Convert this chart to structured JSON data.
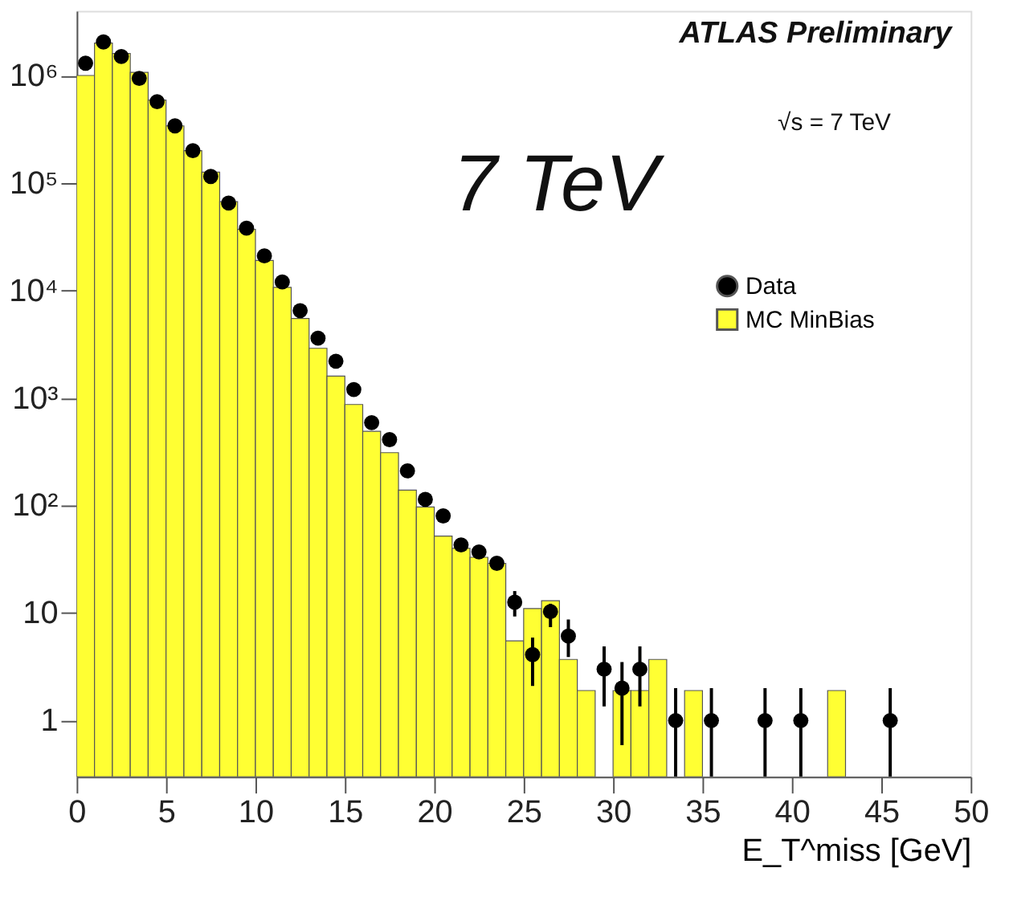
{
  "chart_data": {
    "type": "histogram",
    "xlabel": "E_T^miss [GeV]",
    "annotations": [
      "ATLAS Preliminary",
      "√s = 7 TeV",
      "7 TeV"
    ],
    "bins": [
      0,
      1,
      2,
      3,
      4,
      5,
      6,
      7,
      8,
      9,
      10,
      11,
      12,
      13,
      14,
      15,
      16,
      17,
      18,
      19,
      20,
      21,
      22,
      23,
      24,
      25,
      26,
      27,
      28,
      29,
      30,
      31,
      32,
      33,
      34,
      35,
      36,
      37,
      38,
      39,
      40,
      41,
      42,
      43,
      44,
      45,
      46,
      47,
      48,
      49,
      50
    ],
    "series": [
      {
        "name": "Data",
        "type": "scatter",
        "color": "#000000",
        "marker": "circle",
        "x": [
          0.5,
          1.5,
          2.5,
          3.5,
          4.5,
          5.5,
          6.5,
          7.5,
          8.5,
          9.5,
          10.5,
          11.5,
          12.5,
          13.5,
          14.5,
          15.5,
          16.5,
          17.5,
          18.5,
          19.5,
          20.5,
          21.5,
          22.5,
          23.5,
          24.5,
          25.5,
          26.5,
          27.5,
          29.5,
          30.5,
          31.5,
          33.5,
          35.5,
          38.5,
          40.5,
          45.5
        ],
        "values": [
          1300000,
          2050000,
          1500000,
          940000,
          570000,
          340000,
          200000,
          115000,
          65000,
          38000,
          21000,
          12000,
          6500,
          3600,
          2200,
          1200,
          590,
          410,
          210,
          114,
          80,
          43,
          37,
          29,
          12.6,
          4.1,
          10.3,
          6.1,
          3.0,
          2.0,
          3.0,
          1,
          1,
          1,
          1,
          1
        ],
        "errors": [
          null,
          null,
          null,
          null,
          null,
          null,
          null,
          null,
          null,
          null,
          null,
          null,
          null,
          null,
          null,
          null,
          null,
          null,
          null,
          null,
          null,
          null,
          null,
          null,
          [
            9.3,
            16
          ],
          [
            2.1,
            5.9
          ],
          [
            7.4,
            12.2
          ],
          [
            3.9,
            8.7
          ],
          [
            1.35,
            4.9
          ],
          [
            0.59,
            3.5
          ],
          [
            1.35,
            4.9
          ],
          [
            0.3,
            2.0
          ],
          [
            0.3,
            2.0
          ],
          [
            0.3,
            2.0
          ],
          [
            0.3,
            2.0
          ],
          [
            0.3,
            2.0
          ]
        ]
      },
      {
        "name": "MC MinBias",
        "type": "histogram",
        "color": "#ffff33",
        "values": [
          1000000,
          2000000,
          1600000,
          1070000,
          590000,
          340000,
          200000,
          126000,
          67000,
          37000,
          19000,
          10700,
          5500,
          2900,
          1600,
          870,
          490,
          310,
          139,
          97,
          52,
          40,
          33,
          29,
          5.5,
          11,
          13,
          3.7,
          1.9,
          null,
          1.9,
          1.9,
          3.7,
          null,
          1.9,
          null,
          null,
          null,
          null,
          null,
          null,
          null,
          1.9,
          null,
          null,
          null,
          null,
          null,
          null,
          null
        ]
      }
    ],
    "xlim": [
      0,
      50
    ],
    "xticks": [
      0,
      5,
      10,
      15,
      20,
      25,
      30,
      35,
      40,
      45,
      50
    ],
    "ylim": [
      0.3,
      4000000
    ],
    "log": "y",
    "yticks": [
      1,
      10,
      {
        "value": 100,
        "label": "10²"
      },
      {
        "value": 1000,
        "label": "10³"
      },
      {
        "value": 10000,
        "label": "10⁴"
      },
      {
        "value": 100000,
        "label": "10⁵"
      },
      {
        "value": 1000000,
        "label": "10⁶"
      }
    ],
    "grid": false,
    "legend": "top right"
  }
}
